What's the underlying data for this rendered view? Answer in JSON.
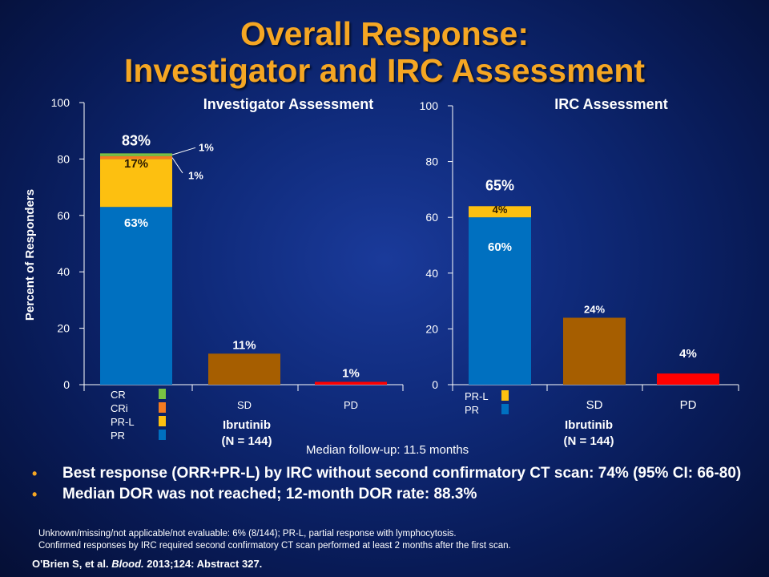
{
  "title_line1": "Overall Response:",
  "title_line2": "Investigator and IRC Assessment",
  "median_followup": "Median follow-up: 11.5 months",
  "bullets": [
    "Best response (ORR+PR-L) by IRC without second confirmatory CT scan: 74% (95% CI: 66-80)",
    "Median DOR was not reached; 12-month DOR rate: 88.3%"
  ],
  "footnote1": "Unknown/missing/not applicable/not evaluable: 6% (8/144); PR-L, partial response with lymphocytosis.",
  "footnote2": "Confirmed responses by IRC required second confirmatory CT scan performed at least 2 months after the first scan.",
  "citation": {
    "authors": "O'Brien S, et al. ",
    "journal": "Blood.",
    "details": " 2013;124: Abstract  327."
  },
  "colors": {
    "CR": "#7ac143",
    "CRi": "#f47b20",
    "PR-L": "#fdc010",
    "PR": "#0070c0",
    "SD": "#a65e00",
    "PD": "#ff0000"
  },
  "chart_data": [
    {
      "type": "bar",
      "title": "Investigator Assessment",
      "ylabel": "Percent of Responders",
      "xlabel": "Ibrutinib",
      "xlabel2": "(N = 144)",
      "ylim": [
        0,
        100
      ],
      "yticks": [
        "0",
        "20",
        "40",
        "60",
        "80",
        "100"
      ],
      "categories": [
        "Response",
        "SD",
        "PD"
      ],
      "category_labels": [
        "",
        "SD",
        "PD"
      ],
      "stack": [
        {
          "name": "PR",
          "value": 63,
          "label": "63%"
        },
        {
          "name": "PR-L",
          "value": 17,
          "label": "17%"
        },
        {
          "name": "CRi",
          "value": 1,
          "label": "1%"
        },
        {
          "name": "CR",
          "value": 1,
          "label": "1%"
        }
      ],
      "stack_total_label": "83%",
      "others": [
        {
          "name": "SD",
          "value": 11,
          "label": "11%"
        },
        {
          "name": "PD",
          "value": 1,
          "label": "1%"
        }
      ],
      "legend": [
        "CR",
        "CRi",
        "PR-L",
        "PR"
      ]
    },
    {
      "type": "bar",
      "title": "IRC Assessment",
      "xlabel": "Ibrutinib",
      "xlabel2": "(N = 144)",
      "ylim": [
        0,
        100
      ],
      "yticks": [
        "0",
        "20",
        "40",
        "60",
        "80",
        "100"
      ],
      "categories": [
        "Response",
        "SD",
        "PD"
      ],
      "category_labels": [
        "",
        "SD",
        "PD"
      ],
      "stack": [
        {
          "name": "PR",
          "value": 60,
          "label": "60%"
        },
        {
          "name": "PR-L",
          "value": 4,
          "label": "4%"
        }
      ],
      "stack_total_label": "65%",
      "others": [
        {
          "name": "SD",
          "value": 24,
          "label": "24%"
        },
        {
          "name": "PD",
          "value": 4,
          "label": "4%"
        }
      ],
      "legend": [
        "PR-L",
        "PR"
      ]
    }
  ]
}
